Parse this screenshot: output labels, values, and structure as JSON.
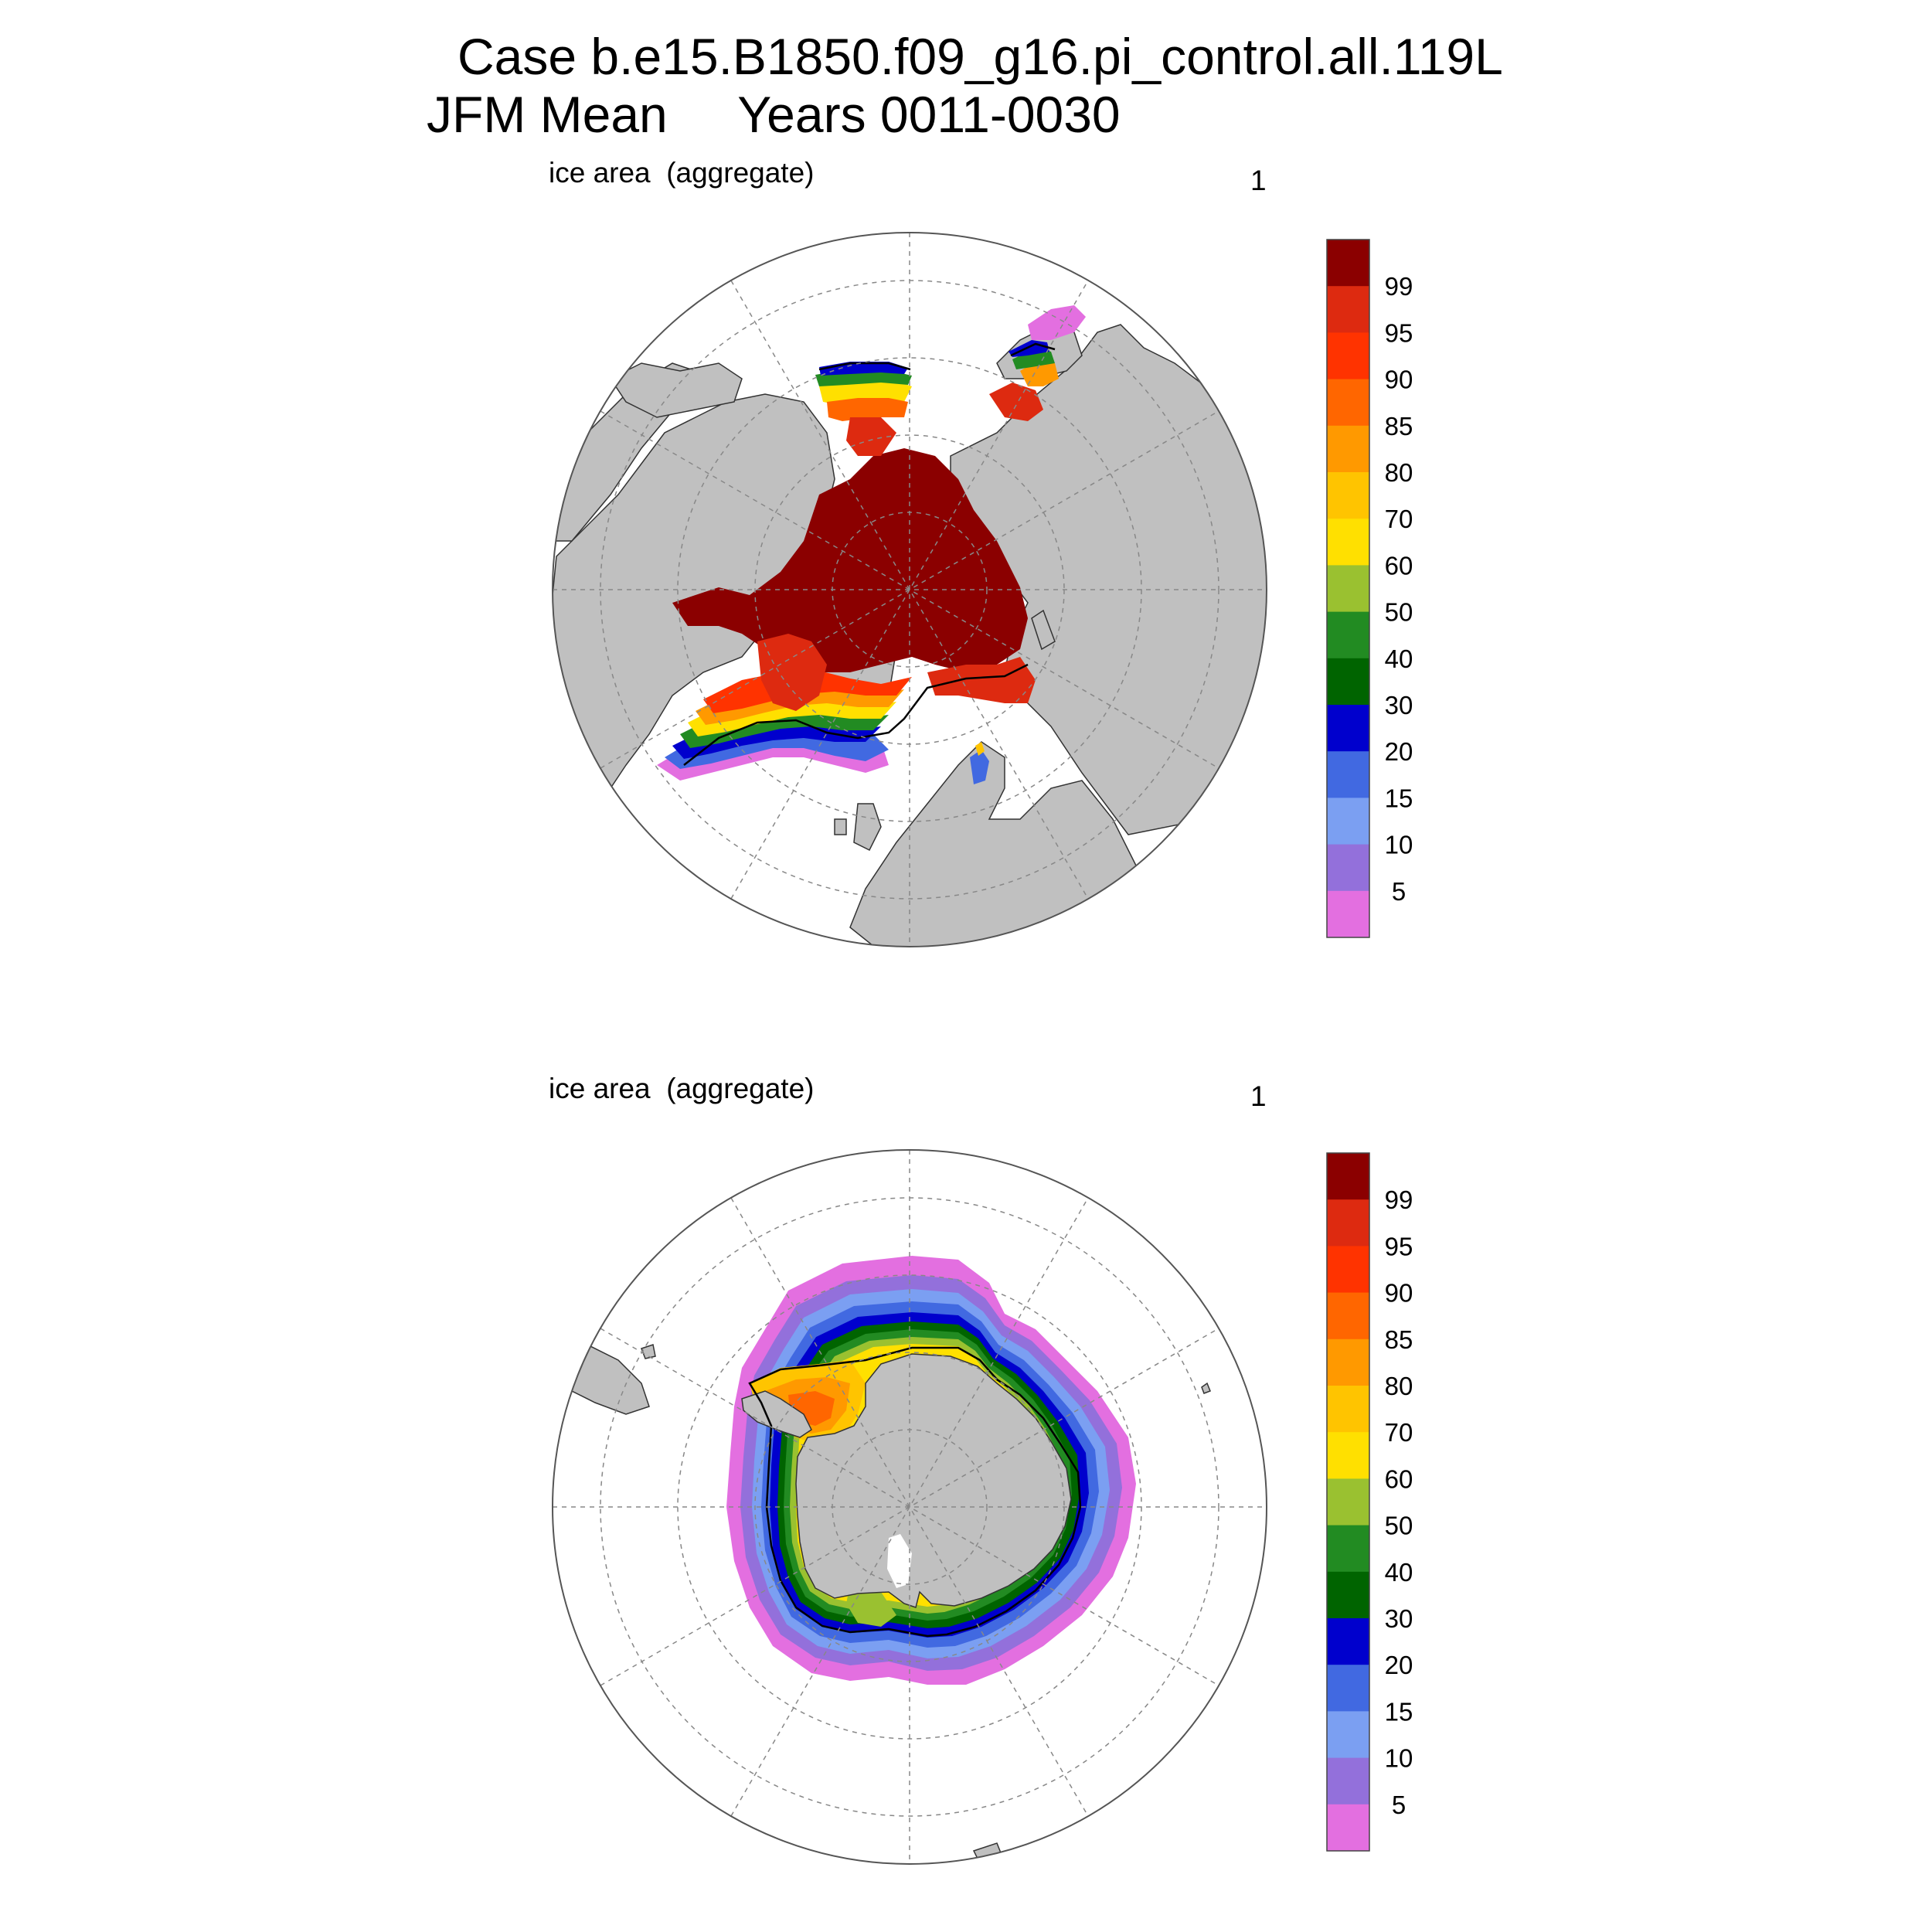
{
  "title": {
    "line1": "Case b.e15.B1850.f09_g16.pi_control.all.119L",
    "line2": "JFM Mean     Years 0011-0030"
  },
  "colorbar": {
    "labels": [
      "99",
      "95",
      "90",
      "85",
      "80",
      "70",
      "60",
      "50",
      "40",
      "30",
      "20",
      "15",
      "10",
      "5"
    ],
    "colors": [
      "#8b0000",
      "#dd2a10",
      "#ff3300",
      "#ff6600",
      "#ff9900",
      "#ffc400",
      "#ffe000",
      "#9ac130",
      "#228b22",
      "#006400",
      "#0000cd",
      "#4169e1",
      "#7b9ff2",
      "#9370db",
      "#e36fe0"
    ]
  },
  "panels": [
    {
      "id": "north",
      "left_label": "ice area  (aggregate)",
      "right_label": "1"
    },
    {
      "id": "south",
      "left_label": "ice area  (aggregate)",
      "right_label": "1"
    }
  ],
  "colors": {
    "land": "#c0c0c0",
    "ocean": "#ffffff",
    "grid": "#888888",
    "outline": "#000000"
  }
}
